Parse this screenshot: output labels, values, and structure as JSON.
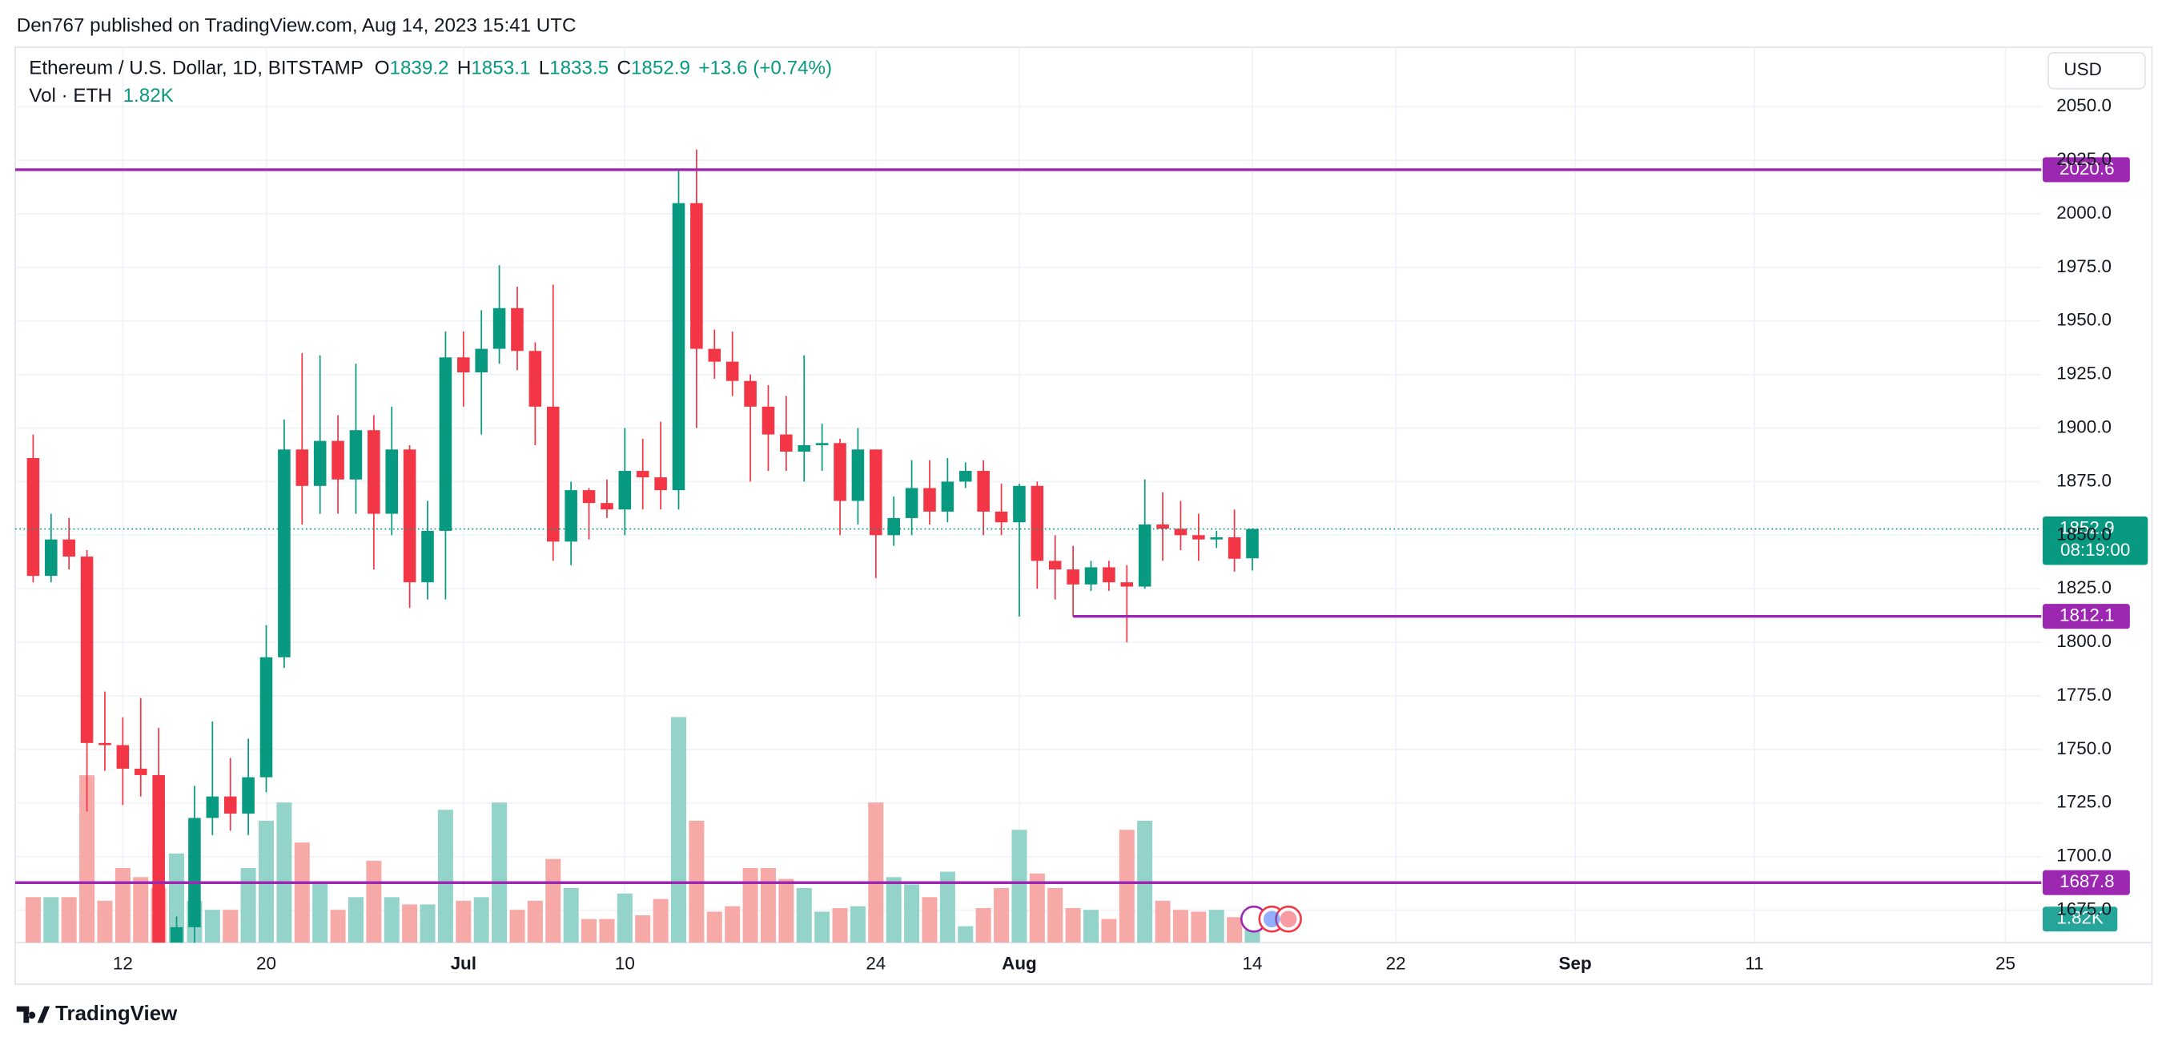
{
  "header": {
    "published": "Den767 published on TradingView.com, Aug 14, 2023 15:41 UTC",
    "symbol": "Ethereum / U.S. Dollar, 1D, BITSTAMP",
    "ohlc_letters": [
      "O",
      "H",
      "L",
      "C"
    ],
    "change": "+13.6 (+0.74%)",
    "vol_title": "Vol · ETH",
    "vol_value": "1.82K",
    "currency": "USD",
    "brand": "TradingView"
  },
  "chart_data": {
    "type": "candlestick",
    "x": [
      "2023-06-07",
      "2023-06-08",
      "2023-06-09",
      "2023-06-10",
      "2023-06-11",
      "2023-06-12",
      "2023-06-13",
      "2023-06-14",
      "2023-06-15",
      "2023-06-16",
      "2023-06-17",
      "2023-06-18",
      "2023-06-19",
      "2023-06-20",
      "2023-06-21",
      "2023-06-22",
      "2023-06-23",
      "2023-06-24",
      "2023-06-25",
      "2023-06-26",
      "2023-06-27",
      "2023-06-28",
      "2023-06-29",
      "2023-06-30",
      "2023-07-01",
      "2023-07-02",
      "2023-07-03",
      "2023-07-04",
      "2023-07-05",
      "2023-07-06",
      "2023-07-07",
      "2023-07-08",
      "2023-07-09",
      "2023-07-10",
      "2023-07-11",
      "2023-07-12",
      "2023-07-13",
      "2023-07-14",
      "2023-07-15",
      "2023-07-16",
      "2023-07-17",
      "2023-07-18",
      "2023-07-19",
      "2023-07-20",
      "2023-07-21",
      "2023-07-22",
      "2023-07-23",
      "2023-07-24",
      "2023-07-25",
      "2023-07-26",
      "2023-07-27",
      "2023-07-28",
      "2023-07-29",
      "2023-07-30",
      "2023-07-31",
      "2023-08-01",
      "2023-08-02",
      "2023-08-03",
      "2023-08-04",
      "2023-08-05",
      "2023-08-06",
      "2023-08-07",
      "2023-08-08",
      "2023-08-09",
      "2023-08-10",
      "2023-08-11",
      "2023-08-12",
      "2023-08-13",
      "2023-08-14"
    ],
    "open": [
      1886,
      1831,
      1848,
      1840,
      1753,
      1752,
      1741,
      1738,
      1650,
      1667,
      1718,
      1728,
      1720,
      1737,
      1793,
      1890,
      1873,
      1894,
      1876,
      1899,
      1860,
      1890,
      1828,
      1852,
      1933,
      1926,
      1937,
      1956,
      1936,
      1910,
      1847,
      1871,
      1865,
      1862,
      1880,
      1877,
      1871,
      2005,
      1937,
      1931,
      1922,
      1910,
      1897,
      1889,
      1892,
      1893,
      1866,
      1890,
      1850,
      1858,
      1872,
      1861,
      1875,
      1880,
      1861,
      1856,
      1873,
      1838,
      1834,
      1827,
      1835,
      1828,
      1826,
      1855,
      1853,
      1850,
      1848,
      1849,
      1839.2
    ],
    "high": [
      1897,
      1860,
      1858,
      1843,
      1777,
      1765,
      1774,
      1760,
      1672,
      1733,
      1763,
      1746,
      1755,
      1808,
      1904,
      1935,
      1934,
      1906,
      1930,
      1906,
      1910,
      1892,
      1866,
      1945,
      1945,
      1955,
      1976,
      1966,
      1940,
      1967,
      1875,
      1872,
      1876,
      1900,
      1895,
      1903,
      2020,
      2030,
      1946,
      1945,
      1925,
      1920,
      1915,
      1934,
      1902,
      1895,
      1900,
      1890,
      1868,
      1885,
      1885,
      1886,
      1884,
      1885,
      1874,
      1874,
      1875,
      1850,
      1845,
      1838,
      1838,
      1836,
      1876,
      1870,
      1866,
      1860,
      1852,
      1862,
      1853.1
    ],
    "low": [
      1828,
      1828,
      1834,
      1721,
      1740,
      1724,
      1728,
      1626,
      1626,
      1640,
      1710,
      1712,
      1710,
      1730,
      1788,
      1855,
      1860,
      1860,
      1860,
      1834,
      1850,
      1816,
      1820,
      1820,
      1910,
      1897,
      1930,
      1927,
      1892,
      1838,
      1836,
      1848,
      1858,
      1850,
      1862,
      1862,
      1862,
      1900,
      1923,
      1915,
      1875,
      1880,
      1880,
      1875,
      1880,
      1850,
      1855,
      1830,
      1845,
      1850,
      1855,
      1856,
      1872,
      1850,
      1850,
      1812,
      1825,
      1820,
      1812,
      1824,
      1824,
      1800,
      1825,
      1838,
      1843,
      1838,
      1844,
      1833,
      1833.5
    ],
    "close": [
      1831,
      1848,
      1840,
      1753,
      1752,
      1741,
      1738,
      1650,
      1667,
      1718,
      1728,
      1720,
      1737,
      1793,
      1890,
      1873,
      1894,
      1876,
      1899,
      1860,
      1890,
      1828,
      1852,
      1933,
      1926,
      1937,
      1956,
      1936,
      1910,
      1847,
      1871,
      1865,
      1862,
      1880,
      1877,
      1871,
      2005,
      1937,
      1931,
      1922,
      1910,
      1897,
      1889,
      1892,
      1893,
      1866,
      1890,
      1850,
      1858,
      1872,
      1861,
      1875,
      1880,
      1861,
      1856,
      1873,
      1838,
      1834,
      1827,
      1835,
      1828,
      1826,
      1855,
      1853,
      1850,
      1848,
      1849,
      1839,
      1852.9
    ],
    "volume": [
      2.5,
      2.5,
      2.5,
      9.2,
      2.3,
      4.1,
      3.6,
      3.0,
      4.9,
      2.3,
      1.8,
      1.8,
      4.1,
      6.7,
      7.7,
      5.5,
      3.3,
      1.8,
      2.5,
      4.5,
      2.5,
      2.1,
      2.1,
      7.3,
      2.3,
      2.5,
      7.7,
      1.8,
      2.3,
      4.6,
      3.0,
      1.3,
      1.3,
      2.7,
      1.5,
      2.4,
      12.4,
      6.7,
      1.7,
      2.0,
      4.1,
      4.1,
      3.5,
      3.0,
      1.7,
      1.9,
      2.0,
      7.7,
      3.6,
      3.2,
      2.5,
      3.9,
      0.9,
      1.9,
      3.0,
      6.2,
      3.8,
      3.0,
      1.9,
      1.8,
      1.3,
      6.2,
      6.7,
      2.3,
      1.8,
      1.7,
      1.8,
      1.4,
      1.82
    ],
    "up_color": "#089981",
    "down_color": "#f23645",
    "volume_up_color": "#94d3c9",
    "volume_down_color": "#f7a9a7",
    "xlim": [
      "2023-06-06",
      "2023-09-27"
    ],
    "xticks": [
      {
        "value": "2023-06-12",
        "label": "12"
      },
      {
        "value": "2023-06-20",
        "label": "20"
      },
      {
        "value": "2023-07-01",
        "label": "Jul",
        "major": true
      },
      {
        "value": "2023-07-10",
        "label": "10"
      },
      {
        "value": "2023-07-24",
        "label": "24"
      },
      {
        "value": "2023-08-01",
        "label": "Aug",
        "major": true
      },
      {
        "value": "2023-08-14",
        "label": "14"
      },
      {
        "value": "2023-08-22",
        "label": "22"
      },
      {
        "value": "2023-09-01",
        "label": "Sep",
        "major": true
      },
      {
        "value": "2023-09-11",
        "label": "11"
      },
      {
        "value": "2023-09-25",
        "label": "25"
      }
    ],
    "ylim": [
      1659.8,
      2077.8
    ],
    "yticks": [
      {
        "value": 1675,
        "label": "1675.0"
      },
      {
        "value": 1700,
        "label": "1700.0"
      },
      {
        "value": 1725,
        "label": "1725.0"
      },
      {
        "value": 1750,
        "label": "1750.0"
      },
      {
        "value": 1775,
        "label": "1775.0"
      },
      {
        "value": 1800,
        "label": "1800.0"
      },
      {
        "value": 1825,
        "label": "1825.0"
      },
      {
        "value": 1850,
        "label": "1850.0"
      },
      {
        "value": 1875,
        "label": "1875.0"
      },
      {
        "value": 1900,
        "label": "1900.0"
      },
      {
        "value": 1925,
        "label": "1925.0"
      },
      {
        "value": 1950,
        "label": "1950.0"
      },
      {
        "value": 1975,
        "label": "1975.0"
      },
      {
        "value": 2000,
        "label": "2000.0"
      },
      {
        "value": 2025,
        "label": "2025.0"
      },
      {
        "value": 2050,
        "label": "2050.0"
      }
    ],
    "grid": true,
    "hlines": [
      {
        "value": 2020.6,
        "color": "#9c27b0"
      },
      {
        "value": 1812.1,
        "from": "2023-08-04",
        "color": "#9c27b0"
      },
      {
        "value": 1687.8,
        "color": "#9c27b0"
      }
    ],
    "countdown": "08:19:00"
  }
}
